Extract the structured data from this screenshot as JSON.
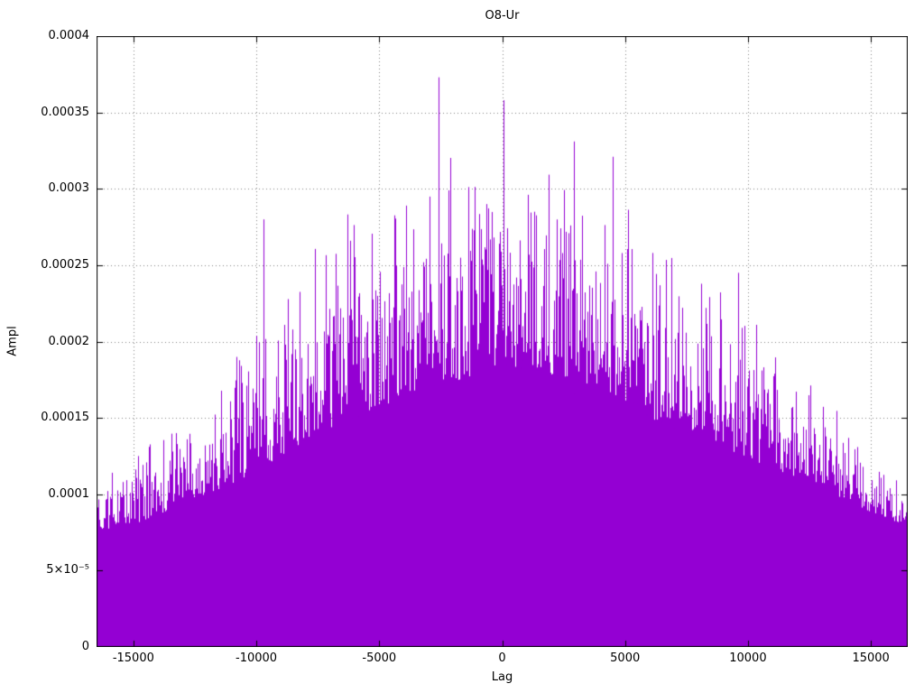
{
  "chart_data": {
    "type": "bar",
    "title": "O8-Ur",
    "xlabel": "Lag",
    "ylabel": "Ampl",
    "xlim": [
      -16500,
      16500
    ],
    "ylim": [
      0,
      0.0004
    ],
    "grid": true,
    "legend": "none",
    "series_color": "#9400D3",
    "grid_color": "#808080",
    "border_color": "#000000",
    "background_color": "#FFFFFF",
    "description": "Dense noisy amplitude-vs-lag correlation plot drawn as vertical impulses; solid purple mass with thin spikes, envelope rising toward lag 0.",
    "x_ticks": [
      {
        "v": -15000,
        "label": "-15000"
      },
      {
        "v": -10000,
        "label": "-10000"
      },
      {
        "v": -5000,
        "label": "-5000"
      },
      {
        "v": 0,
        "label": "0"
      },
      {
        "v": 5000,
        "label": "5000"
      },
      {
        "v": 10000,
        "label": "10000"
      },
      {
        "v": 15000,
        "label": "15000"
      }
    ],
    "y_ticks": [
      {
        "v": 0,
        "label": "0"
      },
      {
        "v": 5e-05,
        "label": "5×10⁻⁵"
      },
      {
        "v": 0.0001,
        "label": "0.0001"
      },
      {
        "v": 0.00015,
        "label": "0.00015"
      },
      {
        "v": 0.0002,
        "label": "0.0002"
      },
      {
        "v": 0.00025,
        "label": "0.00025"
      },
      {
        "v": 0.0003,
        "label": "0.0003"
      },
      {
        "v": 0.00035,
        "label": "0.00035"
      },
      {
        "v": 0.0004,
        "label": "0.0004"
      }
    ],
    "envelope": {
      "x": [
        -16500,
        -15000,
        -13500,
        -12000,
        -10500,
        -9000,
        -7500,
        -6000,
        -4500,
        -3000,
        -1500,
        0,
        1500,
        3000,
        4500,
        6000,
        7500,
        9000,
        10500,
        12000,
        13500,
        15000,
        16500
      ],
      "dense_top": [
        7.5e-05,
        8e-05,
        9e-05,
        0.0001,
        0.00011,
        0.000125,
        0.00014,
        0.00015,
        0.00016,
        0.00017,
        0.000175,
        0.000185,
        0.00018,
        0.000175,
        0.000165,
        0.00015,
        0.00014,
        0.00013,
        0.00012,
        0.00011,
        0.0001,
        8.8e-05,
        7.8e-05
      ],
      "spike_top": [
        0.0001,
        0.00012,
        0.000145,
        0.000135,
        0.00018,
        0.000195,
        0.000235,
        0.000265,
        0.000255,
        0.00029,
        0.00028,
        0.00029,
        0.00028,
        0.000285,
        0.000262,
        0.000258,
        0.00023,
        0.000205,
        0.00019,
        0.000158,
        0.00014,
        0.000115,
        0.0001
      ]
    },
    "peaks": [
      {
        "x": -9700,
        "y": 0.00028
      },
      {
        "x": -6200,
        "y": 0.000266
      },
      {
        "x": -3900,
        "y": 0.000289
      },
      {
        "x": -2600,
        "y": 0.000373
      },
      {
        "x": -2200,
        "y": 0.000299
      },
      {
        "x": -650,
        "y": 0.00029
      },
      {
        "x": 50,
        "y": 0.000358
      },
      {
        "x": 1300,
        "y": 0.000285
      },
      {
        "x": 2900,
        "y": 0.000331
      },
      {
        "x": 4500,
        "y": 0.000321
      },
      {
        "x": 6100,
        "y": 0.000258
      },
      {
        "x": 9600,
        "y": 0.000245
      }
    ]
  }
}
